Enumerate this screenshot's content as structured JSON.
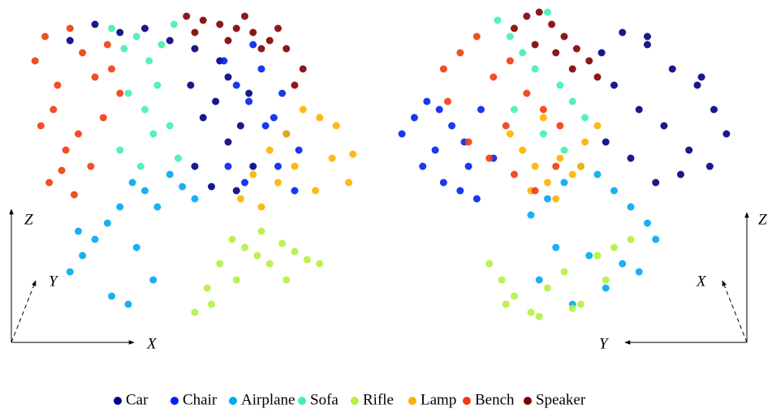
{
  "chart_data": [
    {
      "type": "scatter",
      "xlim": [
        0,
        400
      ],
      "ylim": [
        0,
        400
      ],
      "axis_labels": {
        "vertical": "Z",
        "diagonal": "Y",
        "horizontal": "X"
      },
      "series": [
        {
          "name": "Car",
          "color": "#00007f",
          "x": [
            50,
            80,
            110,
            140,
            170,
            200,
            230,
            195,
            210,
            225,
            240,
            255,
            270,
            200,
            220,
            250,
            265,
            240
          ],
          "y": [
            355,
            375,
            365,
            370,
            355,
            345,
            330,
            300,
            260,
            280,
            230,
            250,
            200,
            200,
            175,
            170,
            290,
            310
          ]
        },
        {
          "name": "Chair",
          "color": "#0022f0",
          "x": [
            235,
            250,
            265,
            280,
            295,
            310,
            325,
            240,
            260,
            285,
            300,
            320,
            270,
            305
          ],
          "y": [
            330,
            300,
            280,
            320,
            260,
            240,
            220,
            200,
            180,
            250,
            200,
            170,
            350,
            290
          ]
        },
        {
          "name": "Airplane",
          "color": "#00a8f0",
          "x": [
            50,
            65,
            80,
            95,
            110,
            125,
            140,
            155,
            170,
            185,
            200,
            130,
            150,
            100,
            120,
            60
          ],
          "y": [
            70,
            90,
            110,
            130,
            150,
            180,
            170,
            150,
            190,
            175,
            160,
            100,
            60,
            40,
            30,
            120
          ]
        },
        {
          "name": "Sofa",
          "color": "#44f0b0",
          "x": [
            100,
            115,
            130,
            145,
            160,
            175,
            120,
            140,
            155,
            170,
            110,
            135,
            150,
            180
          ],
          "y": [
            370,
            345,
            360,
            330,
            350,
            375,
            290,
            270,
            300,
            250,
            220,
            200,
            240,
            210
          ]
        },
        {
          "name": "Rifle",
          "color": "#b4f040",
          "x": [
            200,
            215,
            230,
            245,
            260,
            275,
            290,
            305,
            320,
            335,
            350,
            220,
            250,
            280,
            310
          ],
          "y": [
            20,
            50,
            80,
            110,
            100,
            90,
            80,
            105,
            95,
            85,
            80,
            30,
            60,
            120,
            60
          ]
        },
        {
          "name": "Lamp",
          "color": "#ffb000",
          "x": [
            255,
            270,
            290,
            310,
            330,
            350,
            370,
            390,
            300,
            320,
            345,
            365,
            385,
            280
          ],
          "y": [
            160,
            190,
            220,
            240,
            270,
            260,
            250,
            215,
            180,
            200,
            170,
            210,
            180,
            150
          ]
        },
        {
          "name": "Bench",
          "color": "#f03c10",
          "x": [
            8,
            20,
            35,
            50,
            65,
            80,
            95,
            110,
            15,
            30,
            45,
            60,
            75,
            90,
            25,
            40,
            55,
            100
          ],
          "y": [
            330,
            360,
            300,
            370,
            340,
            310,
            350,
            290,
            250,
            270,
            220,
            240,
            200,
            260,
            180,
            195,
            165,
            320
          ]
        },
        {
          "name": "Speaker",
          "color": "#7f0000",
          "x": [
            190,
            210,
            230,
            250,
            270,
            290,
            310,
            330,
            200,
            240,
            280,
            320,
            260,
            300
          ],
          "y": [
            385,
            380,
            375,
            370,
            365,
            355,
            345,
            320,
            365,
            355,
            345,
            300,
            385,
            370
          ]
        }
      ]
    },
    {
      "type": "scatter",
      "xlim": [
        0,
        400
      ],
      "ylim": [
        0,
        400
      ],
      "axis_labels": {
        "vertical": "Z",
        "diagonal": "X",
        "horizontal": "Y"
      },
      "series": [
        {
          "name": "Car",
          "color": "#00007f",
          "x": [
            245,
            270,
            300,
            330,
            360,
            380,
            395,
            260,
            290,
            320,
            350,
            375,
            250,
            280,
            310,
            340,
            365,
            300
          ],
          "y": [
            340,
            365,
            350,
            320,
            300,
            270,
            240,
            300,
            270,
            250,
            220,
            200,
            230,
            210,
            180,
            190,
            310,
            360
          ]
        },
        {
          "name": "Chair",
          "color": "#0022f0",
          "x": [
            5,
            20,
            35,
            50,
            65,
            80,
            100,
            115,
            30,
            55,
            75,
            95,
            45,
            85
          ],
          "y": [
            240,
            260,
            280,
            270,
            250,
            230,
            270,
            210,
            200,
            180,
            170,
            160,
            220,
            200
          ]
        },
        {
          "name": "Airplane",
          "color": "#00a8f0",
          "x": [
            160,
            180,
            200,
            220,
            240,
            260,
            280,
            300,
            310,
            190,
            230,
            270,
            210,
            250,
            290,
            170
          ],
          "y": [
            140,
            160,
            180,
            200,
            190,
            170,
            150,
            130,
            110,
            100,
            90,
            80,
            30,
            50,
            70,
            60
          ]
        },
        {
          "name": "Sofa",
          "color": "#44f0b0",
          "x": [
            120,
            135,
            150,
            165,
            180,
            195,
            210,
            225,
            140,
            175,
            200,
            220
          ],
          "y": [
            380,
            360,
            340,
            320,
            390,
            300,
            280,
            260,
            270,
            240,
            220,
            200
          ]
        },
        {
          "name": "Rifle",
          "color": "#b4f040",
          "x": [
            110,
            125,
            140,
            160,
            180,
            200,
            220,
            240,
            260,
            280,
            130,
            170,
            210,
            250
          ],
          "y": [
            80,
            60,
            40,
            20,
            50,
            70,
            30,
            90,
            100,
            110,
            30,
            15,
            25,
            60
          ]
        },
        {
          "name": "Lamp",
          "color": "#ffb000",
          "x": [
            135,
            150,
            165,
            180,
            195,
            210,
            225,
            240,
            160,
            190,
            220,
            175
          ],
          "y": [
            240,
            220,
            200,
            180,
            210,
            190,
            230,
            250,
            170,
            160,
            200,
            260
          ]
        },
        {
          "name": "Bench",
          "color": "#f03c10",
          "x": [
            55,
            75,
            95,
            115,
            135,
            155,
            175,
            195,
            85,
            110,
            140,
            165,
            190,
            60,
            130
          ],
          "y": [
            320,
            340,
            360,
            310,
            330,
            290,
            270,
            250,
            230,
            210,
            190,
            170,
            200,
            280,
            250
          ]
        },
        {
          "name": "Speaker",
          "color": "#7f0000",
          "x": [
            140,
            155,
            170,
            185,
            200,
            215,
            230,
            165,
            190,
            210,
            240
          ],
          "y": [
            370,
            385,
            390,
            375,
            360,
            345,
            330,
            350,
            340,
            320,
            310
          ]
        }
      ]
    }
  ]
}
